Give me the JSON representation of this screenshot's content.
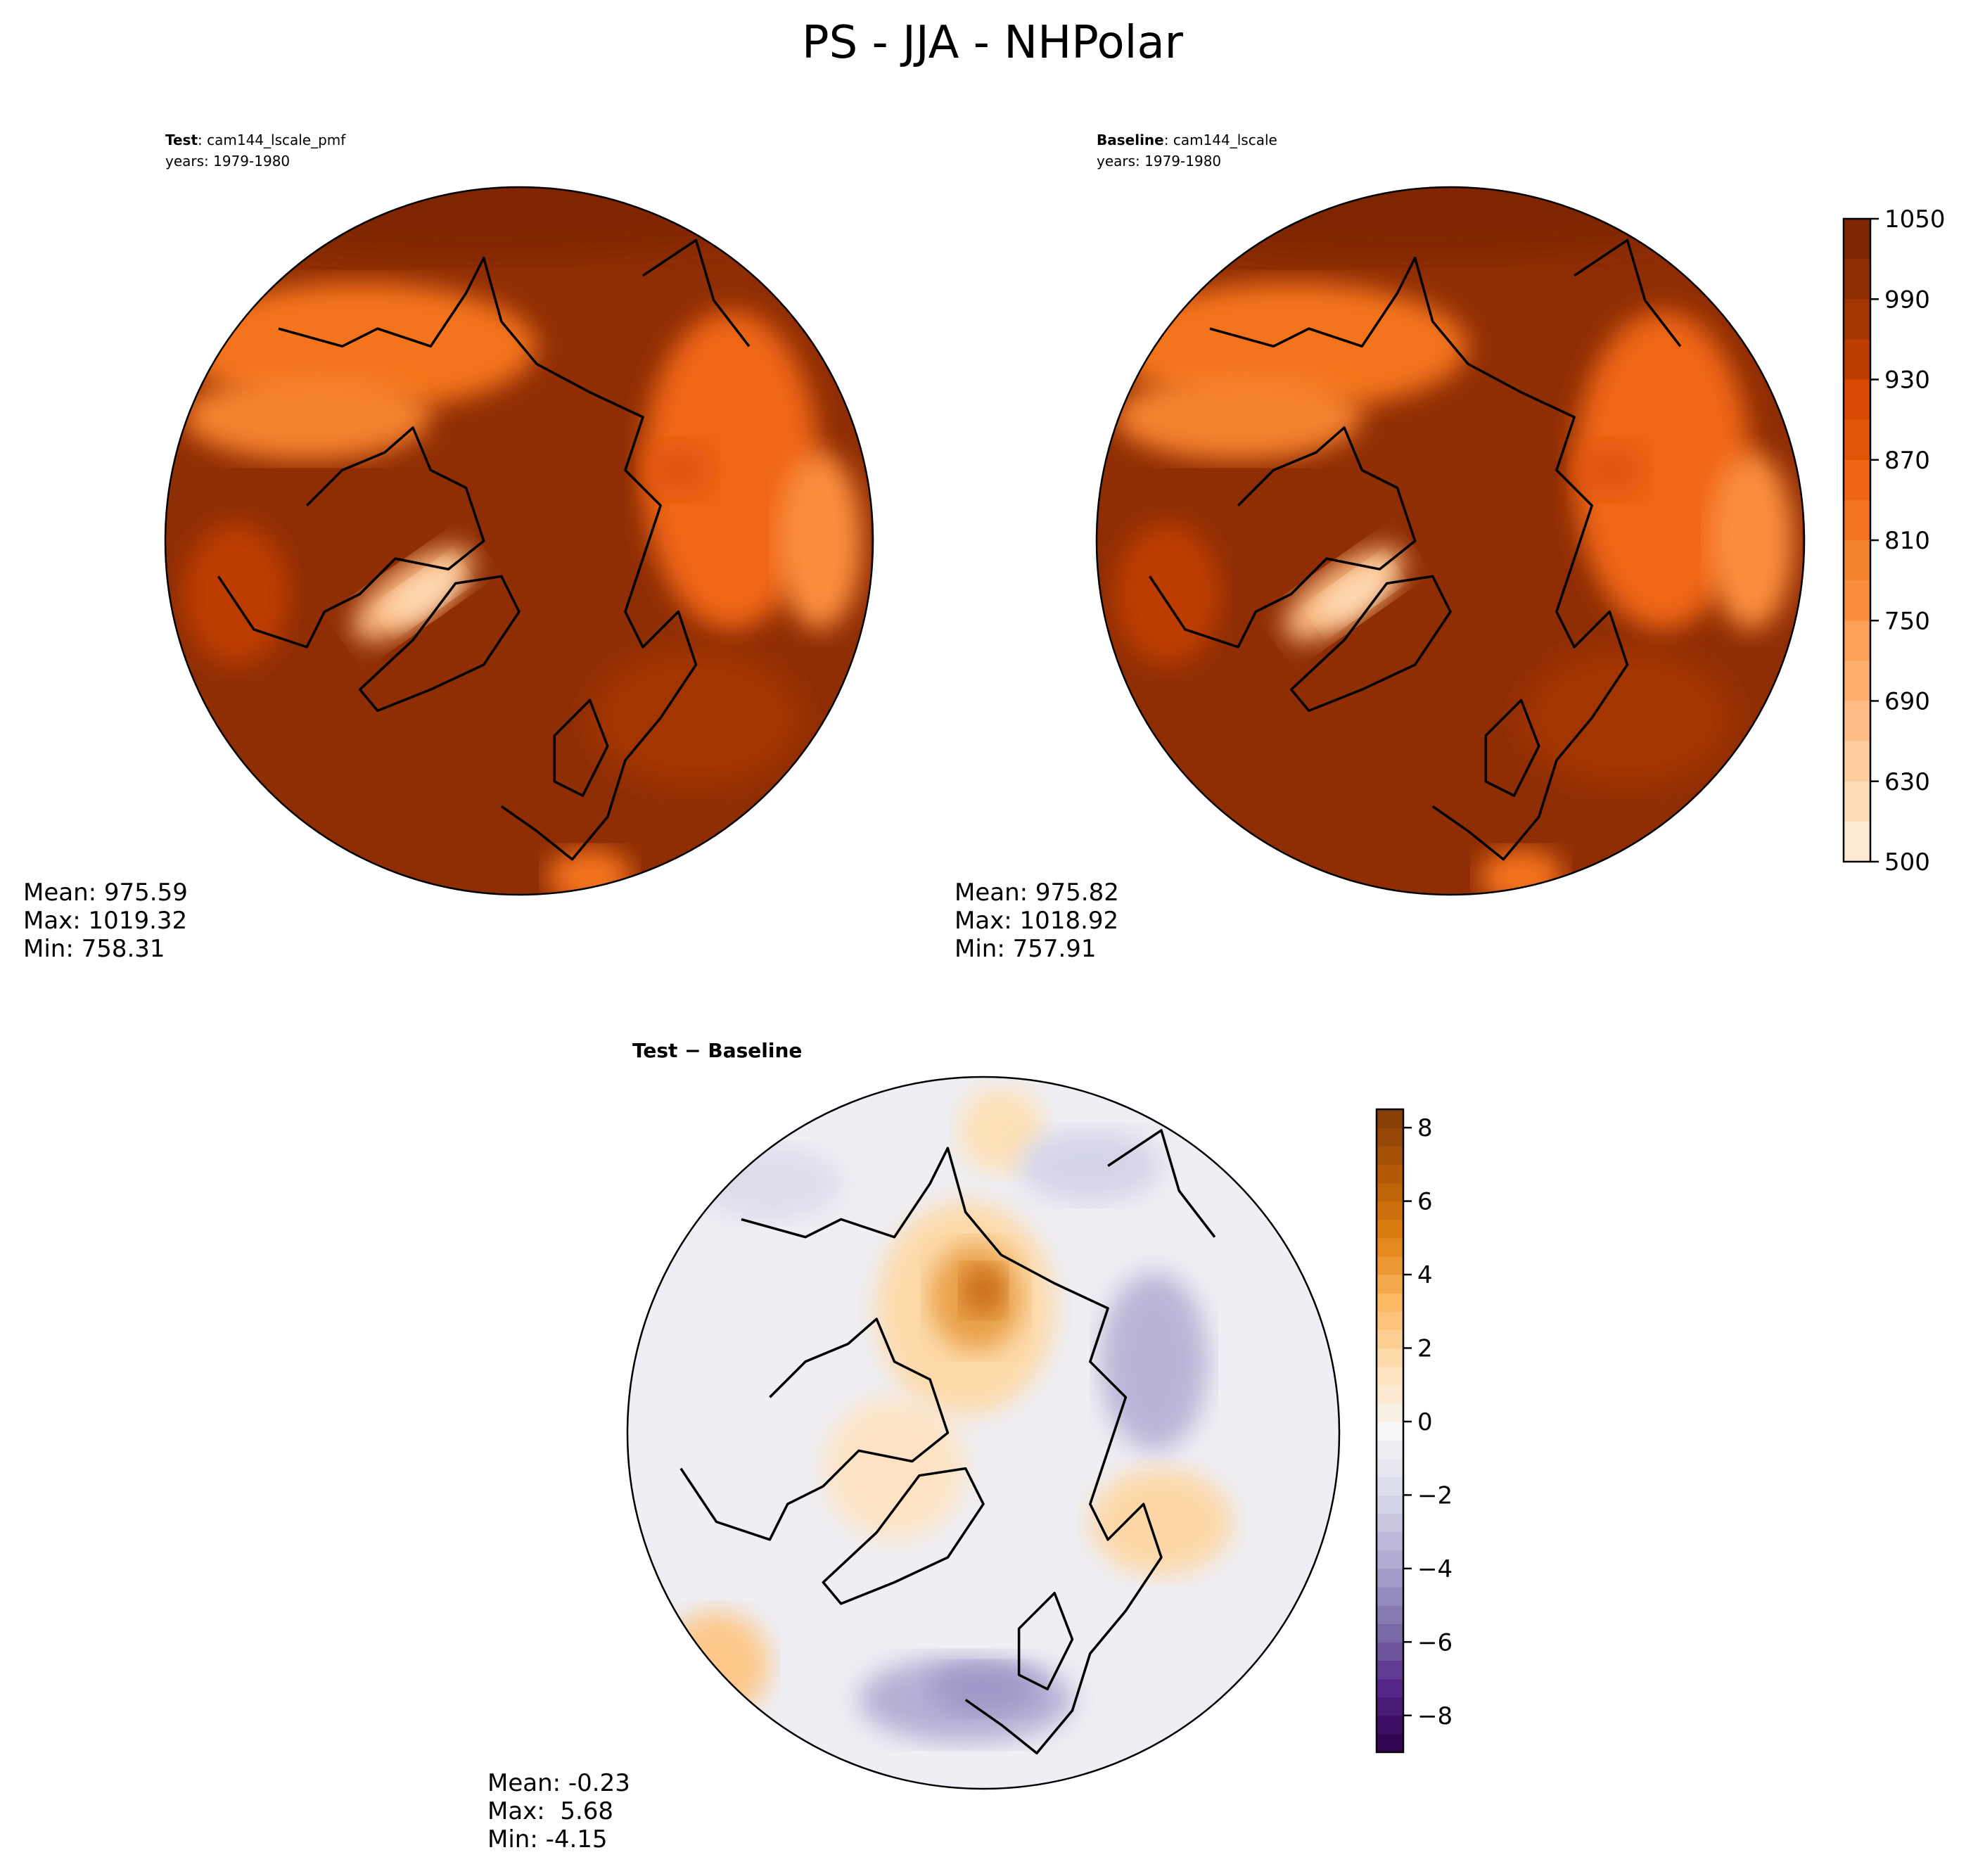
{
  "title": "PS - JJA - NHPolar",
  "chart_data": [
    {
      "type": "heatmap",
      "panel": "test",
      "label_bold": "Test",
      "label_rest": ": cam144_lscale_pmf",
      "years": "years: 1979-1980",
      "stats": [
        "Mean: 975.59",
        "Max: 1019.32",
        "Min: 758.31"
      ],
      "projection": "north polar stereographic",
      "base_color": "#8f2d04"
    },
    {
      "type": "heatmap",
      "panel": "baseline",
      "label_bold": "Baseline",
      "label_rest": ": cam144_lscale",
      "years": "years: 1979-1980",
      "stats": [
        "Mean: 975.82",
        "Max: 1018.92",
        "Min: 757.91"
      ],
      "projection": "north polar stereographic",
      "base_color": "#8f2d04"
    },
    {
      "type": "heatmap",
      "panel": "difference",
      "label": "Test − Baseline",
      "stats": [
        "Mean: -0.23",
        "Max:  5.68",
        "Min: -4.15"
      ],
      "projection": "north polar stereographic"
    }
  ],
  "colorbar_main": {
    "ticks": [
      "1050",
      "990",
      "930",
      "870",
      "810",
      "750",
      "690",
      "630",
      "500"
    ],
    "colors_top_to_bottom": [
      "#7f2704",
      "#8f2d04",
      "#a33503",
      "#bd3e02",
      "#d84801",
      "#e25508",
      "#ef6612",
      "#f4731f",
      "#f7822e",
      "#fb8d3d",
      "#fd9f56",
      "#fdae6b",
      "#fdbd84",
      "#fdcd9f",
      "#fedbb8",
      "#fee9d4"
    ]
  },
  "colorbar_diff": {
    "range": [
      -9,
      8.5
    ],
    "ticks": [
      8,
      6,
      4,
      2,
      0,
      -2,
      -4,
      -6,
      -8
    ],
    "tick_labels": [
      "8",
      "6",
      "4",
      "2",
      "0",
      "−2",
      "−4",
      "−6",
      "−8"
    ],
    "colormap_stops": [
      "#2d004b",
      "#542788",
      "#8073ac",
      "#b2abd2",
      "#d8daeb",
      "#f7f7f7",
      "#fee0b6",
      "#fdb863",
      "#e08214",
      "#b35806",
      "#7f3b08"
    ]
  }
}
